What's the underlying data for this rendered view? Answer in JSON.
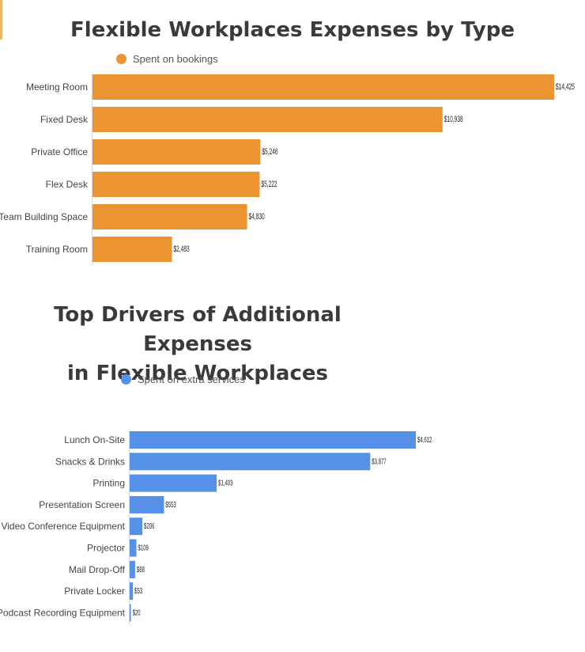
{
  "colors": {
    "bookings": "#ec9431",
    "extras": "#5591e6",
    "axis_text": "#444444"
  },
  "chart_data": [
    {
      "type": "bar",
      "orientation": "horizontal",
      "title": "Flexible Workplaces Expenses by Type",
      "legend_position": "top-left",
      "categories": [
        "Meeting Room",
        "Fixed Desk",
        "Private Office",
        "Flex Desk",
        "Team Building Space",
        "Training Room"
      ],
      "series": [
        {
          "name": "Spent on bookings",
          "values": [
            14425,
            10938,
            5246,
            5222,
            4830,
            2483
          ],
          "labels": [
            "$14,425",
            "$10,938",
            "$5,246",
            "$5,222",
            "$4,830",
            "$2,483"
          ]
        }
      ]
    },
    {
      "type": "bar",
      "orientation": "horizontal",
      "title": [
        "Top Drivers of Additional Expenses",
        "in Flexible Workplaces"
      ],
      "legend_position": "top-left",
      "categories": [
        "Lunch On-Site",
        "Snacks & Drinks",
        "Printing",
        "Presentation Screen",
        "Video Conference Equipment",
        "Projector",
        "Mail Drop-Off",
        "Private Locker",
        "Podcast Recording Equipment"
      ],
      "series": [
        {
          "name": "Spent on extra services",
          "values": [
            4612,
            3877,
            1403,
            553,
            206,
            109,
            88,
            53,
            20
          ],
          "labels": [
            "$4,612",
            "$3,877",
            "$1,403",
            "$553",
            "$206",
            "$109",
            "$88",
            "$53",
            "$20"
          ]
        }
      ]
    }
  ]
}
